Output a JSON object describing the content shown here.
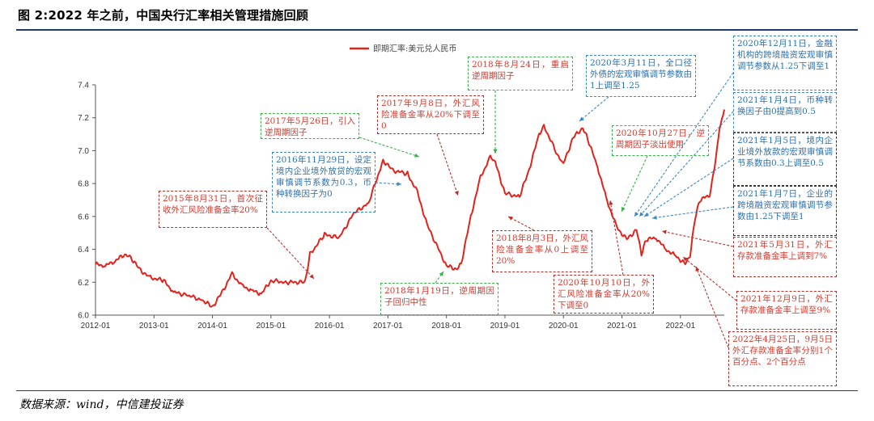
{
  "figure": {
    "title": "图 2:2022 年之前，中国央行汇率相关管理措施回顾",
    "source": "数据来源：wind，中信建投证券"
  },
  "chart_data": {
    "type": "line",
    "series": [
      {
        "name": "即期汇率:美元兑人民币",
        "color": "#e0231c",
        "points": [
          [
            "2012-01",
            6.31
          ],
          [
            "2012-03",
            6.3
          ],
          [
            "2012-05",
            6.33
          ],
          [
            "2012-07",
            6.37
          ],
          [
            "2012-08",
            6.36
          ],
          [
            "2012-10",
            6.28
          ],
          [
            "2012-12",
            6.23
          ],
          [
            "2013-03",
            6.21
          ],
          [
            "2013-05",
            6.14
          ],
          [
            "2013-08",
            6.12
          ],
          [
            "2013-11",
            6.09
          ],
          [
            "2014-01",
            6.05
          ],
          [
            "2014-03",
            6.14
          ],
          [
            "2014-05",
            6.25
          ],
          [
            "2014-07",
            6.18
          ],
          [
            "2014-09",
            6.15
          ],
          [
            "2014-11",
            6.13
          ],
          [
            "2015-01",
            6.21
          ],
          [
            "2015-04",
            6.2
          ],
          [
            "2015-08",
            6.2
          ],
          [
            "2015-09",
            6.37
          ],
          [
            "2015-12",
            6.49
          ],
          [
            "2016-03",
            6.47
          ],
          [
            "2016-06",
            6.62
          ],
          [
            "2016-09",
            6.68
          ],
          [
            "2016-12",
            6.94
          ],
          [
            "2017-02",
            6.88
          ],
          [
            "2017-05",
            6.86
          ],
          [
            "2017-07",
            6.75
          ],
          [
            "2017-09",
            6.55
          ],
          [
            "2018-01",
            6.3
          ],
          [
            "2018-03",
            6.28
          ],
          [
            "2018-04",
            6.31
          ],
          [
            "2018-06",
            6.6
          ],
          [
            "2018-08",
            6.84
          ],
          [
            "2018-10",
            6.96
          ],
          [
            "2018-11",
            6.93
          ],
          [
            "2019-01",
            6.74
          ],
          [
            "2019-04",
            6.72
          ],
          [
            "2019-06",
            6.89
          ],
          [
            "2019-08",
            7.1
          ],
          [
            "2019-09",
            7.15
          ],
          [
            "2019-12",
            6.96
          ],
          [
            "2020-01",
            6.92
          ],
          [
            "2020-03",
            7.08
          ],
          [
            "2020-05",
            7.14
          ],
          [
            "2020-06",
            7.07
          ],
          [
            "2020-08",
            6.9
          ],
          [
            "2020-10",
            6.69
          ],
          [
            "2020-12",
            6.53
          ],
          [
            "2021-02",
            6.46
          ],
          [
            "2021-04",
            6.52
          ],
          [
            "2021-05",
            6.37
          ],
          [
            "2021-06",
            6.46
          ],
          [
            "2021-08",
            6.47
          ],
          [
            "2021-10",
            6.4
          ],
          [
            "2021-12",
            6.36
          ],
          [
            "2022-02",
            6.31
          ],
          [
            "2022-03",
            6.36
          ],
          [
            "2022-04",
            6.59
          ],
          [
            "2022-05",
            6.7
          ],
          [
            "2022-07",
            6.73
          ],
          [
            "2022-08",
            6.9
          ],
          [
            "2022-09",
            7.13
          ],
          [
            "2022-10",
            7.25
          ]
        ]
      }
    ],
    "x_ticks": [
      "2012-01",
      "2013-01",
      "2014-01",
      "2015-01",
      "2016-01",
      "2017-01",
      "2018-01",
      "2019-01",
      "2020-01",
      "2021-01",
      "2022-01"
    ],
    "y_ticks": [
      "6.0",
      "6.2",
      "6.4",
      "6.6",
      "6.8",
      "7.0",
      "7.2",
      "7.4"
    ],
    "ylim": [
      6.0,
      7.4
    ],
    "xlim": [
      "2012-01",
      "2022-10"
    ],
    "legend_position": "top-center",
    "grid": false
  },
  "annotations": [
    {
      "text": "2015年8月31日，首次征收外汇风险准备金率20%"
    },
    {
      "text": "2016年11月29日，设定境内企业境外放贷的宏观审慎调节系数为0.3，币种转换因子为0"
    },
    {
      "text": "2017年5月26日，引入逆周期因子"
    },
    {
      "text": "2017年9月8日，外汇风险准备金率从20%下调至0"
    },
    {
      "text": "2018年1月19日，逆周期因子回归中性"
    },
    {
      "text": "2018年8月24日，重启逆周期因子"
    },
    {
      "text": "2018年8月3日，外汇风险准备金率从0上调至20%"
    },
    {
      "text": "2020年3月11日，全口径外债的宏观审慎调节参数由1上调至1.25"
    },
    {
      "text": "2020年10月10日，外汇风险准备金率从20%下调至0"
    },
    {
      "text": "2020年10月27日，逆周期因子淡出使用"
    },
    {
      "text": "2020年12月11日，金融机构的跨境融资宏观审慎调节参数从1.25下调至1"
    },
    {
      "text": "2021年1月4日，币种转换因子由0提高到0.5"
    },
    {
      "text": "2021年1月5日，境内企业境外放款的宏观审慎调节系数由0.3上调至0.5"
    },
    {
      "text": "2021年1月7日，企业的跨境融资宏观审慎调节参数由1.25下调至1"
    },
    {
      "text": "2021年5月31日，外汇存款准备金率上调到7%"
    },
    {
      "text": "2021年12月9日，外汇存款准备金率上调至9%"
    },
    {
      "text": "2022年4月25日，9月5日外汇存款准备金率分别1个百分点、2个百分点"
    }
  ]
}
